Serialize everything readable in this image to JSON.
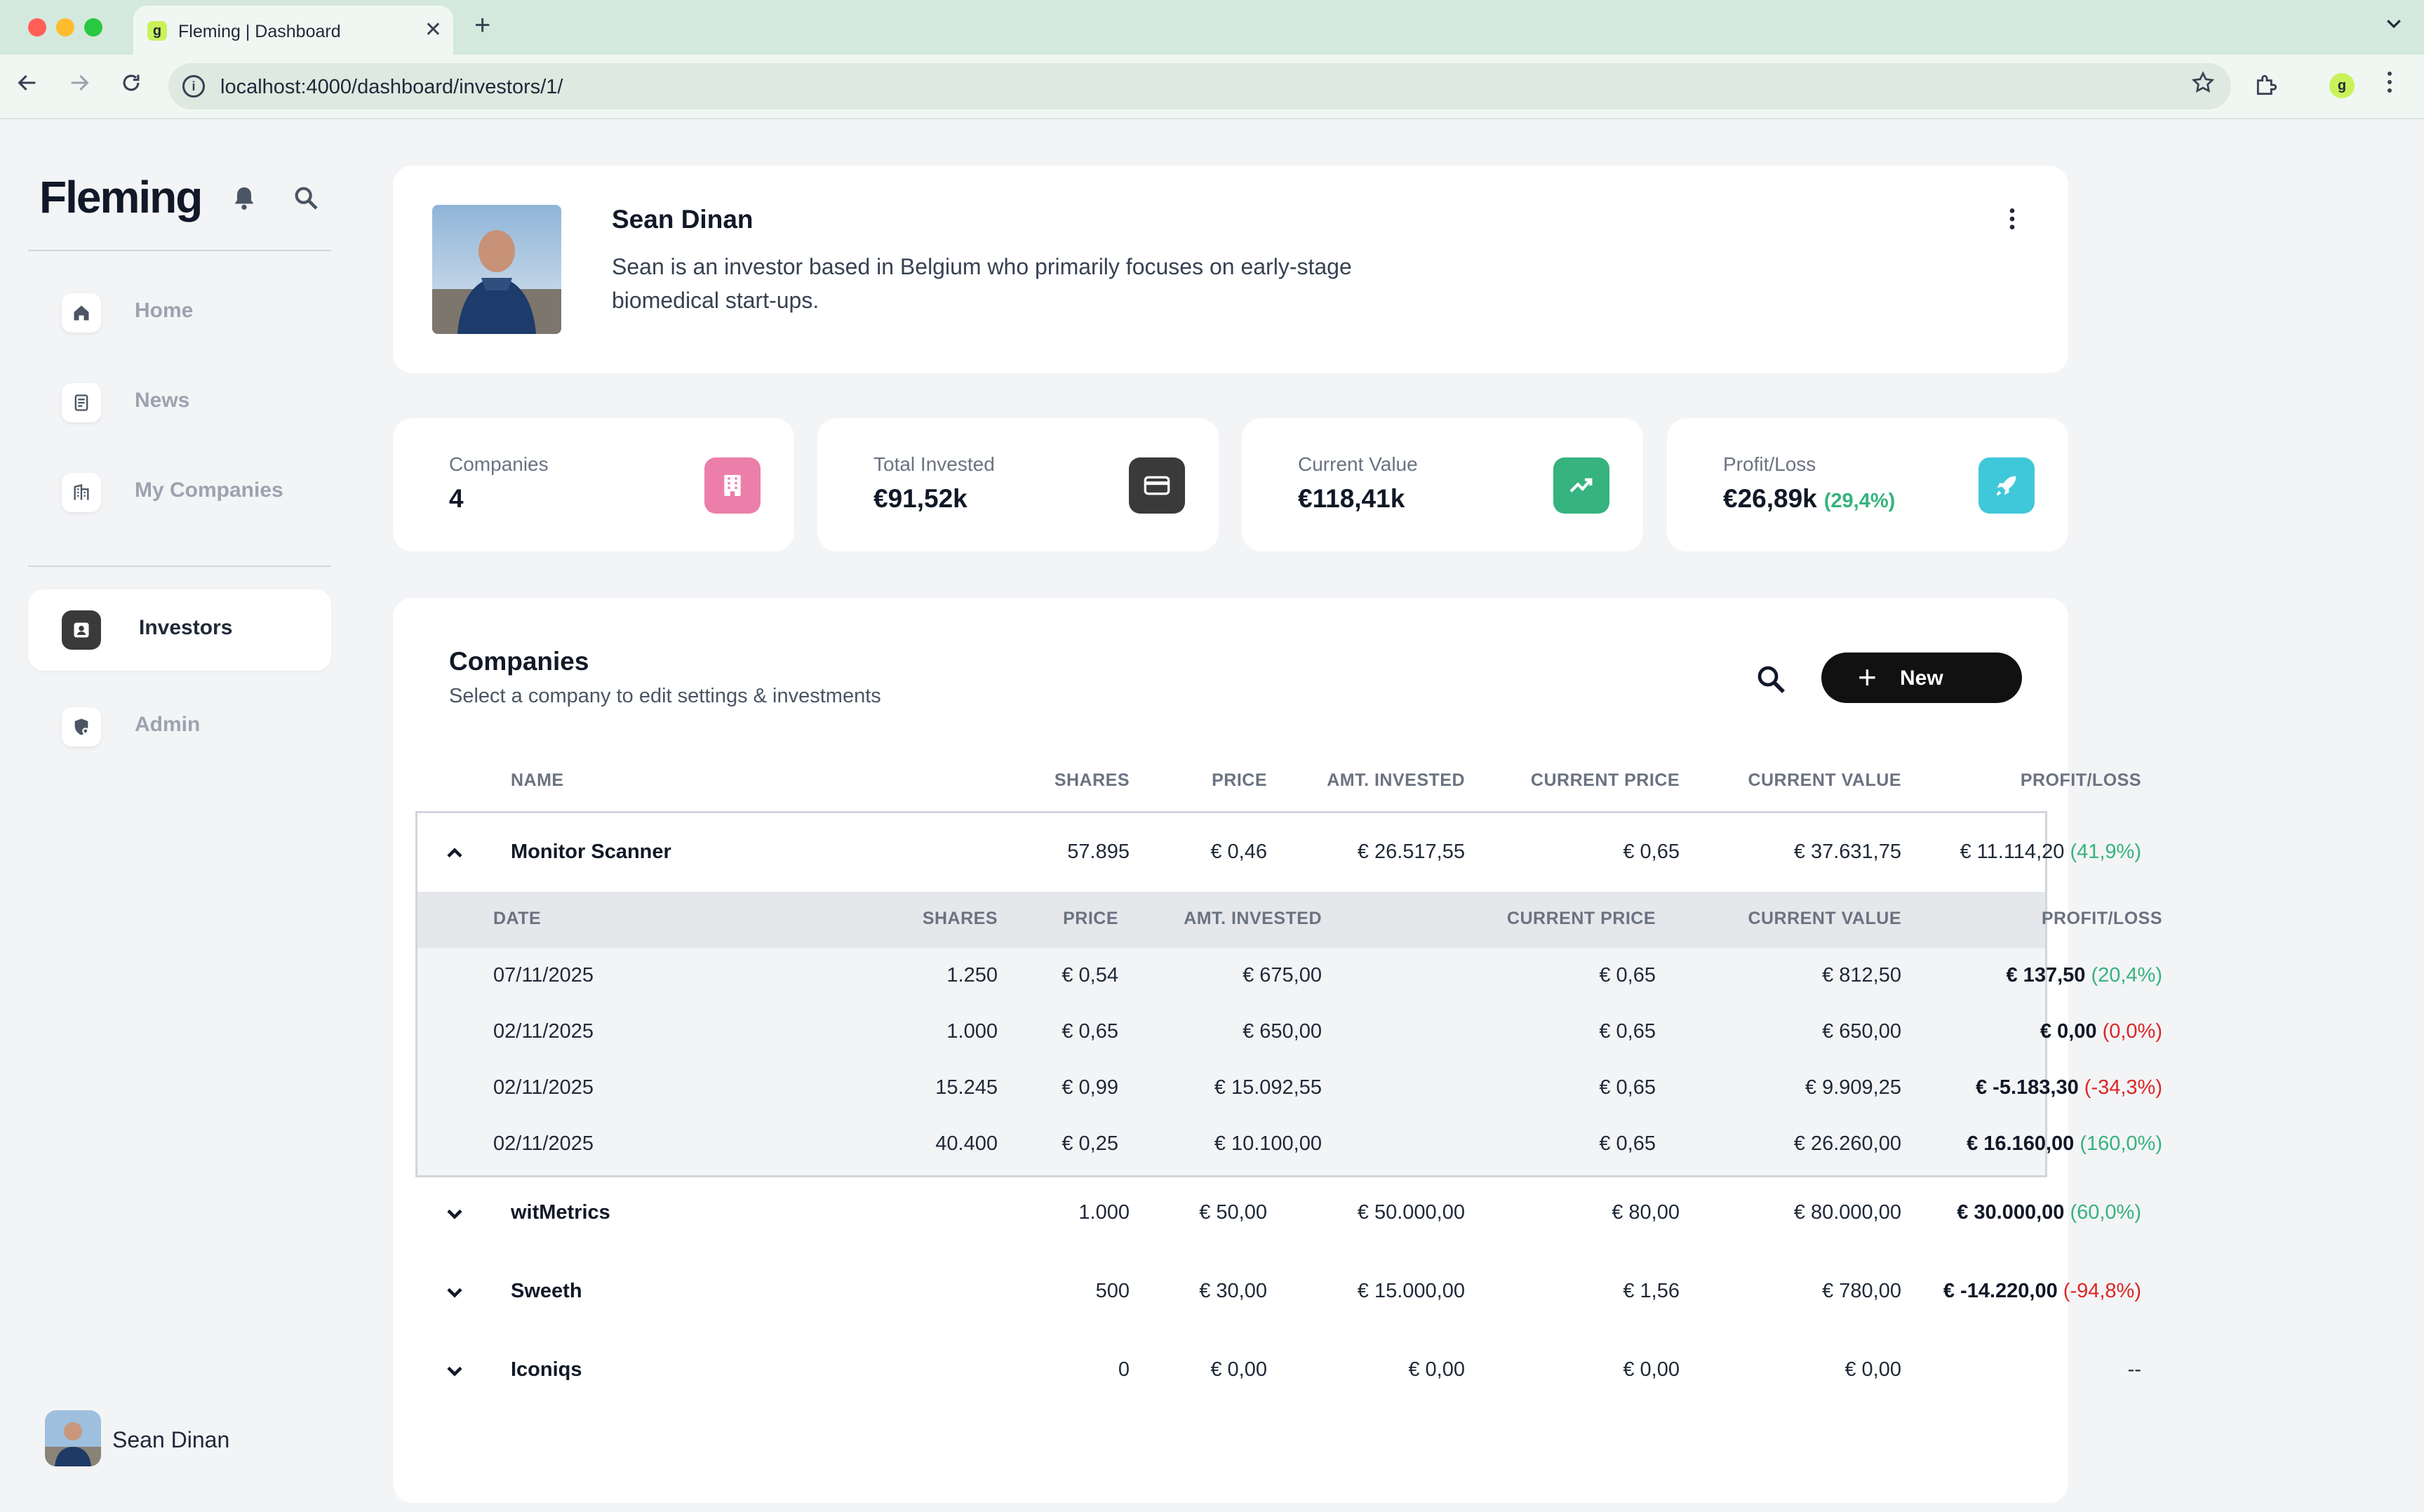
{
  "browser": {
    "tab_title": "Fleming | Dashboard",
    "tab_close": "✕",
    "new_tab": "+",
    "url": "localhost:4000/dashboard/investors/1/"
  },
  "sidebar": {
    "logo": "Fleming",
    "nav_primary": [
      {
        "label": "Home",
        "icon": "home-icon"
      },
      {
        "label": "News",
        "icon": "document-icon"
      },
      {
        "label": "My Companies",
        "icon": "building-icon"
      }
    ],
    "nav_secondary": [
      {
        "label": "Investors",
        "icon": "contact-icon",
        "active": true
      },
      {
        "label": "Admin",
        "icon": "shield-icon"
      }
    ],
    "user_name": "Sean Dinan"
  },
  "profile": {
    "name": "Sean Dinan",
    "bio": "Sean is an investor based in Belgium who primarily focuses on early-stage biomedical start-ups."
  },
  "stats": [
    {
      "label": "Companies",
      "value": "4",
      "icon": "building-icon",
      "color": "#ec7fa9"
    },
    {
      "label": "Total Invested",
      "value": "€91,52k",
      "icon": "credit-card-icon",
      "color": "#3a3a3a"
    },
    {
      "label": "Current Value",
      "value": "€118,41k",
      "icon": "trending-up-icon",
      "color": "#36b37e"
    },
    {
      "label": "Profit/Loss",
      "value": "€26,89k",
      "pct": "(29,4%)",
      "icon": "rocket-icon",
      "color": "#3fc8d9"
    }
  ],
  "companies": {
    "title": "Companies",
    "subtitle": "Select a company to edit settings & investments",
    "new_label": "New",
    "columns": [
      "NAME",
      "SHARES",
      "PRICE",
      "AMT. INVESTED",
      "CURRENT PRICE",
      "CURRENT VALUE",
      "PROFIT/LOSS"
    ],
    "sub_columns": [
      "DATE",
      "SHARES",
      "PRICE",
      "AMT. INVESTED",
      "CURRENT PRICE",
      "CURRENT VALUE",
      "PROFIT/LOSS"
    ],
    "rows": [
      {
        "name": "Monitor Scanner",
        "shares": "57.895",
        "price": "€ 0,46",
        "invested": "€ 26.517,55",
        "current_price": "€ 0,65",
        "current_value": "€ 37.631,75",
        "pl": "€ 11.114,20",
        "pl_pct": "(41,9%)",
        "pl_sign": "pos",
        "expanded": true
      },
      {
        "name": "witMetrics",
        "shares": "1.000",
        "price": "€ 50,00",
        "invested": "€ 50.000,00",
        "current_price": "€ 80,00",
        "current_value": "€ 80.000,00",
        "pl": "€ 30.000,00",
        "pl_pct": "(60,0%)",
        "pl_sign": "pos"
      },
      {
        "name": "Sweeth",
        "shares": "500",
        "price": "€ 30,00",
        "invested": "€ 15.000,00",
        "current_price": "€ 1,56",
        "current_value": "€ 780,00",
        "pl": "€ -14.220,00",
        "pl_pct": "(-94,8%)",
        "pl_sign": "neg"
      },
      {
        "name": "Iconiqs",
        "shares": "0",
        "price": "€ 0,00",
        "invested": "€ 0,00",
        "current_price": "€ 0,00",
        "current_value": "€ 0,00",
        "pl": "--",
        "pl_pct": "",
        "pl_sign": "none"
      }
    ],
    "investments": [
      {
        "date": "07/11/2025",
        "shares": "1.250",
        "price": "€ 0,54",
        "invested": "€ 675,00",
        "current_price": "€ 0,65",
        "current_value": "€ 812,50",
        "pl": "€ 137,50",
        "pl_pct": "(20,4%)",
        "pl_sign": "pos"
      },
      {
        "date": "02/11/2025",
        "shares": "1.000",
        "price": "€ 0,65",
        "invested": "€ 650,00",
        "current_price": "€ 0,65",
        "current_value": "€ 650,00",
        "pl": "€ 0,00",
        "pl_pct": "(0,0%)",
        "pl_sign": "neg"
      },
      {
        "date": "02/11/2025",
        "shares": "15.245",
        "price": "€ 0,99",
        "invested": "€ 15.092,55",
        "current_price": "€ 0,65",
        "current_value": "€ 9.909,25",
        "pl": "€ -5.183,30",
        "pl_pct": "(-34,3%)",
        "pl_sign": "neg"
      },
      {
        "date": "02/11/2025",
        "shares": "40.400",
        "price": "€ 0,25",
        "invested": "€ 10.100,00",
        "current_price": "€ 0,65",
        "current_value": "€ 26.260,00",
        "pl": "€ 16.160,00",
        "pl_pct": "(160,0%)",
        "pl_sign": "pos"
      }
    ]
  }
}
